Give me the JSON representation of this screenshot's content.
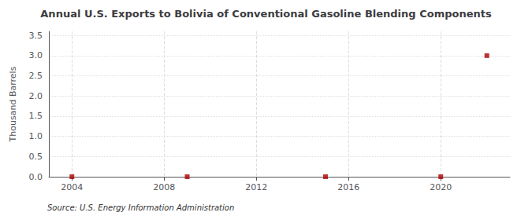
{
  "chart_data": {
    "type": "scatter",
    "title": "Annual U.S. Exports to Bolivia of Conventional Gasoline Blending Components",
    "ylabel": "Thousand Barrels",
    "source": "Source: U.S. Energy Information Administration",
    "x": [
      2004,
      2009,
      2015,
      2020,
      2022
    ],
    "values": [
      0.0,
      0.0,
      0.0,
      0.0,
      3.0
    ],
    "color": "#aa0000",
    "marker": "square",
    "xlim": [
      2003,
      2023
    ],
    "xticks": [
      2004,
      2008,
      2012,
      2016,
      2020
    ],
    "ylim": [
      0,
      3.6
    ],
    "yticks": [
      {
        "value": 0.0,
        "label": "0.0"
      },
      0.5,
      {
        "value": 1.0,
        "label": "1.0"
      },
      1.5,
      {
        "value": 2.0,
        "label": "2.0"
      },
      2.5,
      {
        "value": 3.0,
        "label": "3.0"
      },
      3.5
    ],
    "grid": true
  }
}
